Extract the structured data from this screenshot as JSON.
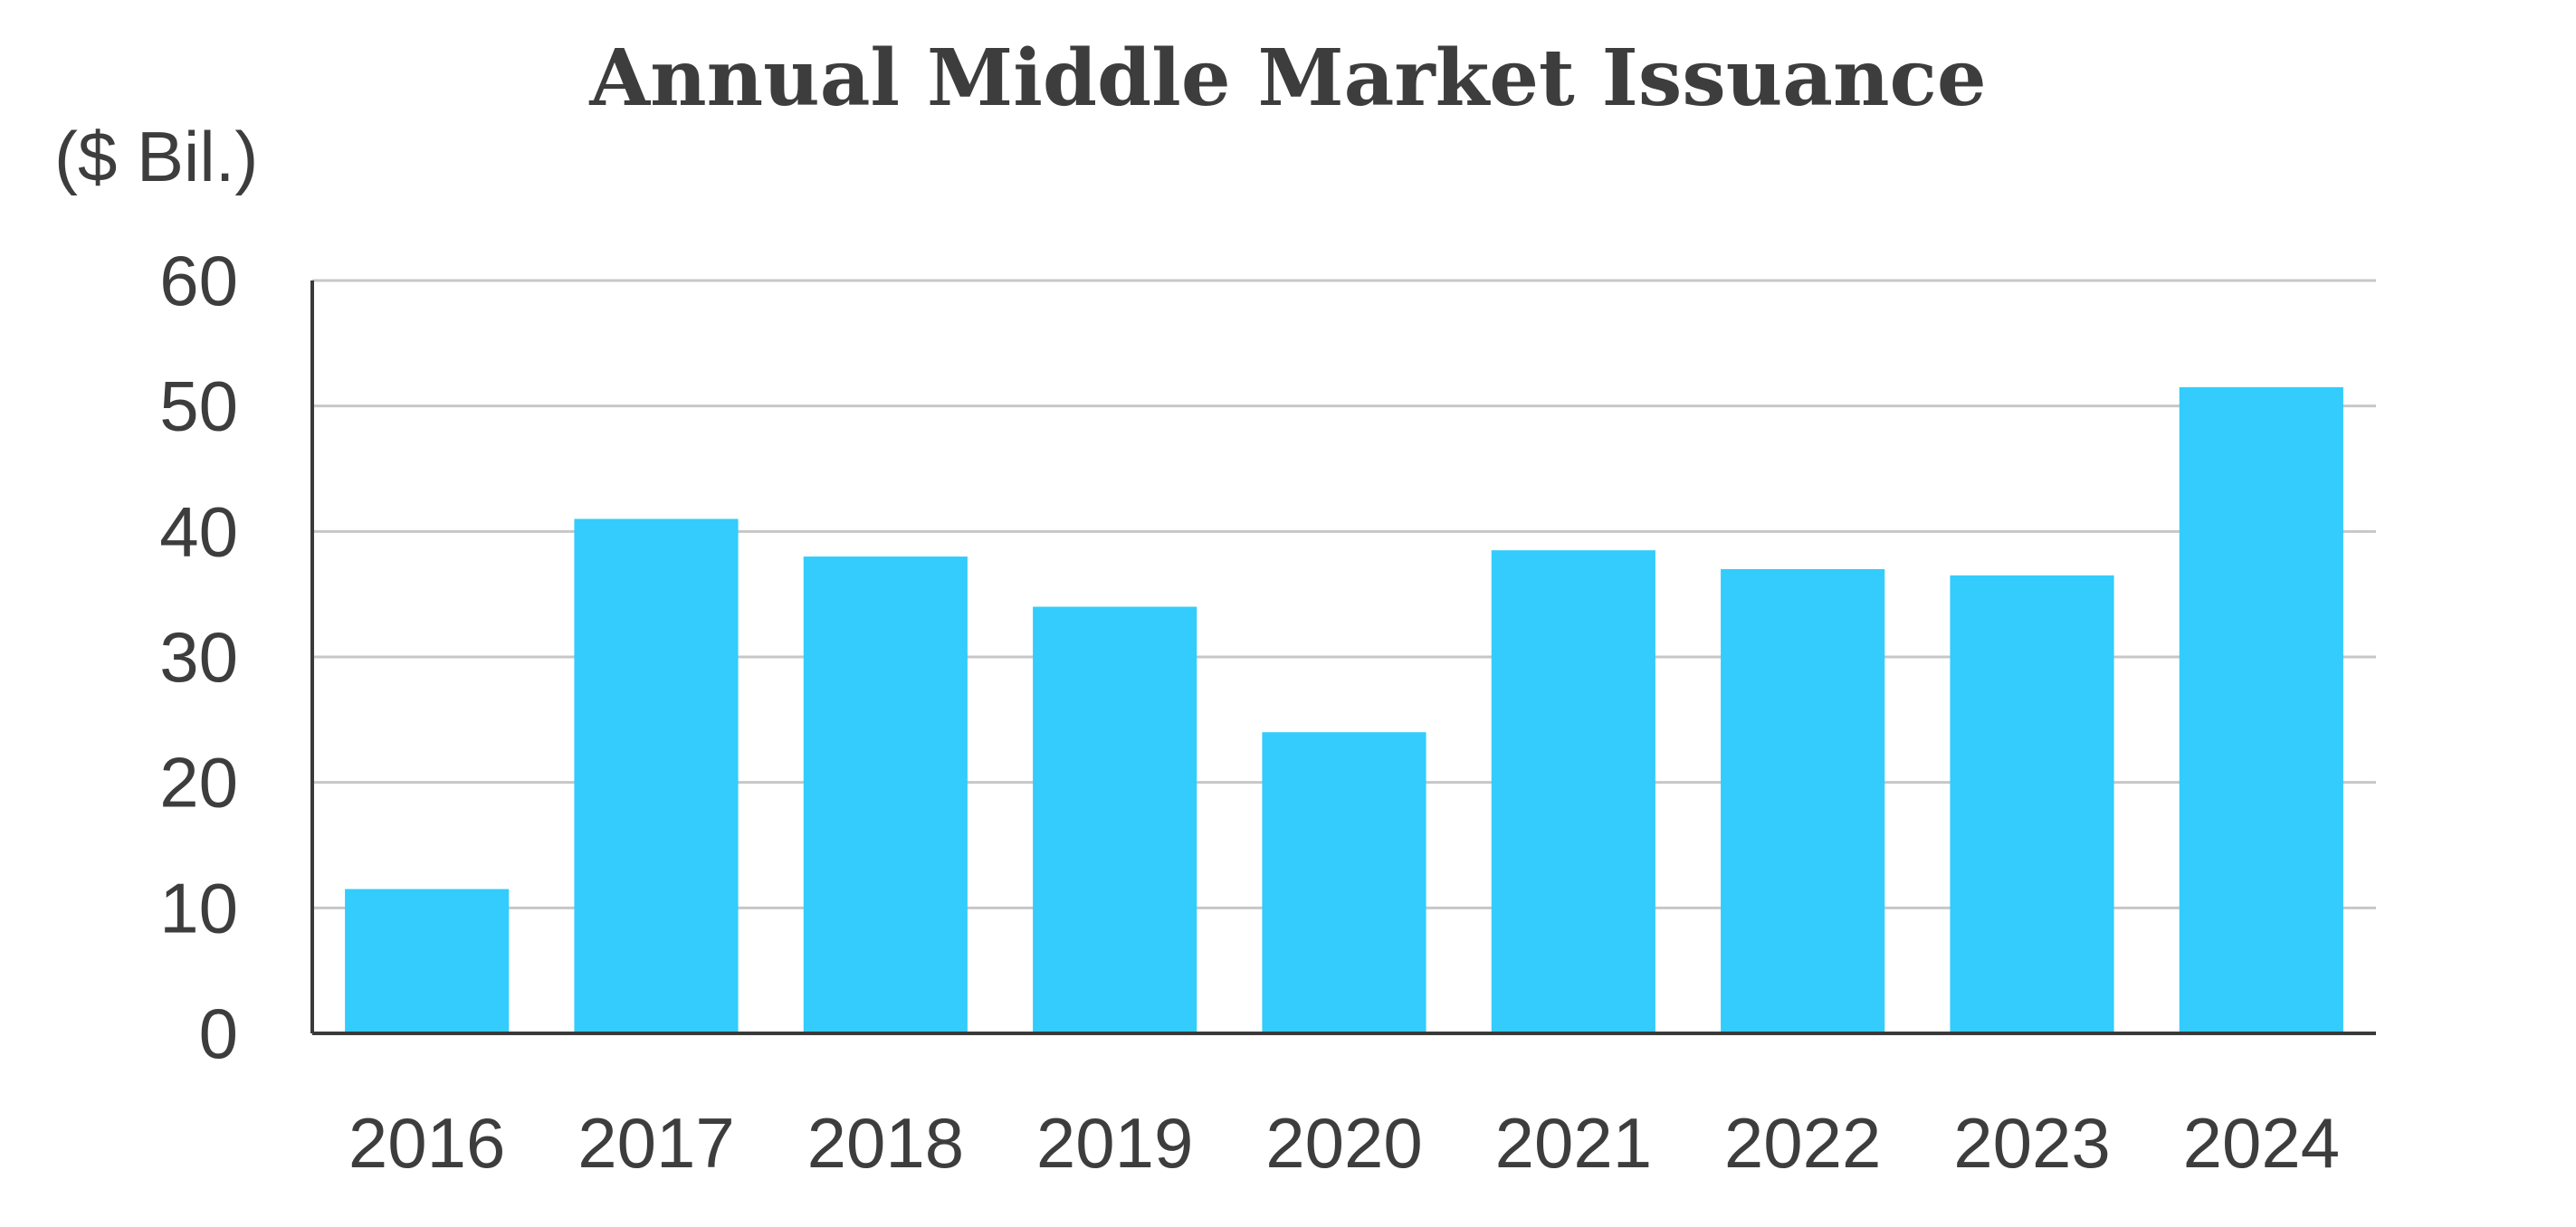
{
  "chart_data": {
    "type": "bar",
    "title": "Annual Middle Market Issuance",
    "unit_label": "($ Bil.)",
    "xlabel": "",
    "ylabel": "",
    "categories": [
      "2016",
      "2017",
      "2018",
      "2019",
      "2020",
      "2021",
      "2022",
      "2023",
      "2024"
    ],
    "values": [
      11.5,
      41,
      38,
      34,
      24,
      38.5,
      37,
      36.5,
      51.5
    ],
    "ylim": [
      0,
      60
    ],
    "yticks": [
      "0",
      "10",
      "20",
      "30",
      "40",
      "50",
      "60"
    ],
    "grid": true,
    "legend": "none",
    "bar_color": "#33ccfc"
  }
}
